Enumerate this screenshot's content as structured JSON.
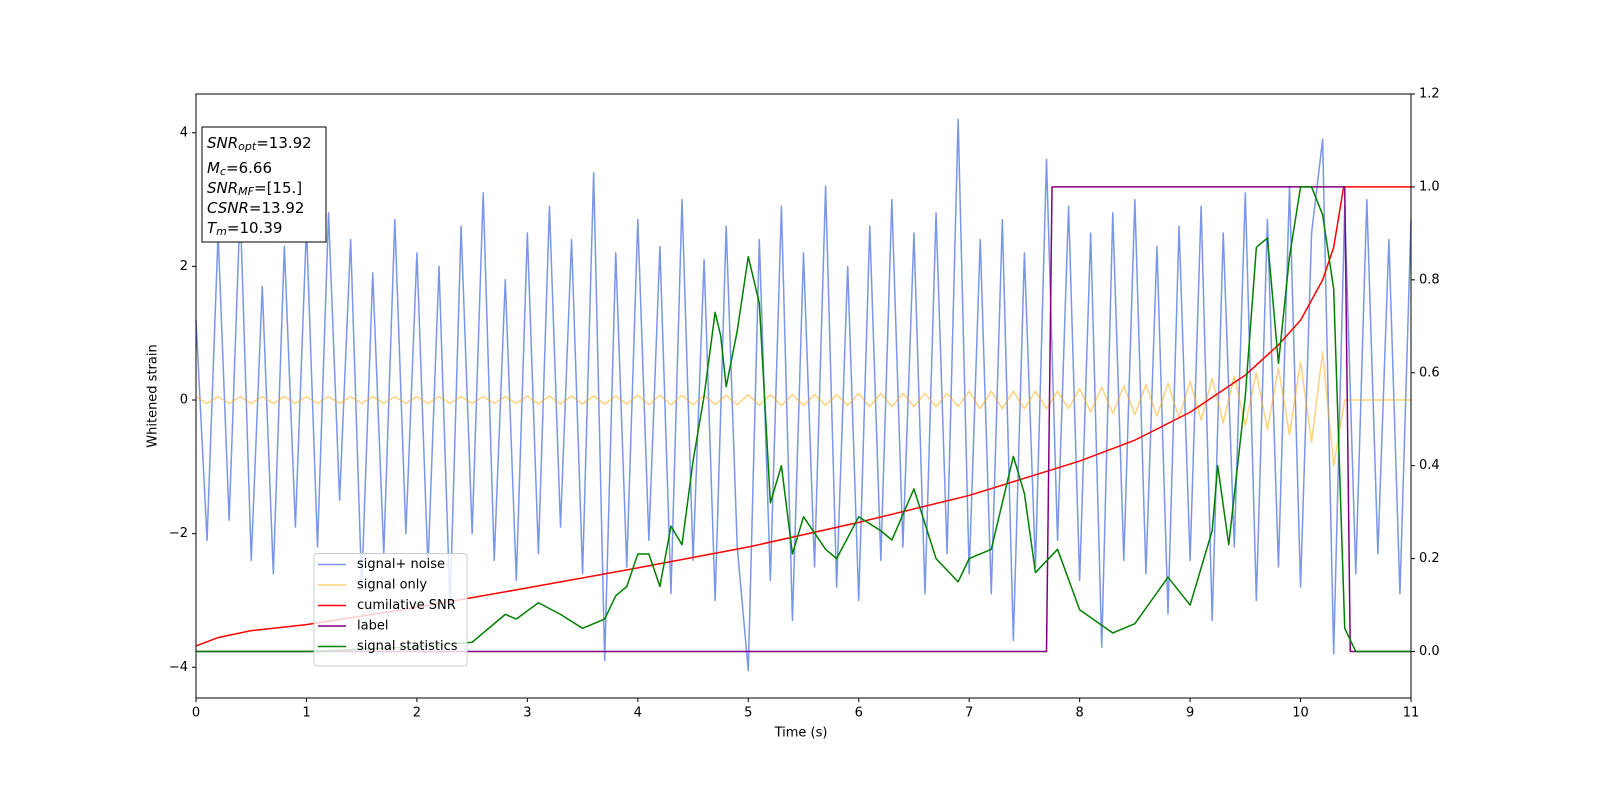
{
  "chart_data": {
    "type": "line",
    "xlabel": "Time (s)",
    "ylabel": "Whitened strain",
    "xlim": [
      0,
      11
    ],
    "ylim": [
      -4.46,
      4.58
    ],
    "y2lim": [
      -0.1,
      1.2
    ],
    "xticks": [
      0,
      1,
      2,
      3,
      4,
      5,
      6,
      7,
      8,
      9,
      10,
      11
    ],
    "yticks": [
      {
        "value": -4,
        "label": "−4"
      },
      {
        "value": -2,
        "label": "−2"
      },
      0,
      2,
      4
    ],
    "y2ticks": [
      {
        "value": 0,
        "label": "0.0"
      },
      0.2,
      0.4,
      0.6,
      0.8,
      {
        "value": 1,
        "label": "1.0"
      },
      1.2
    ],
    "legend": "lower left",
    "x": [
      0,
      0.1,
      0.2,
      0.3,
      0.4,
      0.5,
      0.6,
      0.7,
      0.8,
      0.9,
      1,
      1.1,
      1.2,
      1.3,
      1.4,
      1.5,
      1.6,
      1.7,
      1.8,
      1.9,
      2,
      2.1,
      2.2,
      2.3,
      2.4,
      2.5,
      2.6,
      2.7,
      2.8,
      2.9,
      3,
      3.1,
      3.2,
      3.3,
      3.4,
      3.5,
      3.6,
      3.7,
      3.8,
      3.9,
      4,
      4.1,
      4.2,
      4.3,
      4.4,
      4.5,
      4.6,
      4.7,
      4.8,
      4.9,
      5,
      5.1,
      5.2,
      5.3,
      5.4,
      5.5,
      5.6,
      5.7,
      5.8,
      5.9,
      6,
      6.1,
      6.2,
      6.3,
      6.4,
      6.5,
      6.6,
      6.7,
      6.8,
      6.9,
      7,
      7.1,
      7.2,
      7.3,
      7.4,
      7.5,
      7.6,
      7.7,
      7.8,
      7.9,
      8,
      8.1,
      8.2,
      8.3,
      8.4,
      8.5,
      8.6,
      8.7,
      8.8,
      8.9,
      9,
      9.1,
      9.2,
      9.3,
      9.4,
      9.5,
      9.6,
      9.7,
      9.8,
      9.9,
      10,
      10.1,
      10.2,
      10.3,
      10.4,
      10.5,
      10.6,
      10.7,
      10.8,
      10.9,
      11
    ],
    "series": [
      {
        "name": "signal+ noise",
        "color": "#6b8be6",
        "alpha": 0.9,
        "values": [
          1.2,
          -2.1,
          2.5,
          -1.8,
          2.9,
          -2.4,
          1.7,
          -2.6,
          2.3,
          -1.9,
          2.6,
          -2.2,
          2.8,
          -1.5,
          2.4,
          -2.8,
          1.9,
          -2.3,
          2.7,
          -2.0,
          2.2,
          -2.5,
          2.0,
          -3.1,
          2.6,
          -2.0,
          3.1,
          -2.4,
          1.8,
          -2.7,
          2.5,
          -2.3,
          2.9,
          -1.9,
          2.4,
          -2.6,
          3.4,
          -3.9,
          2.2,
          -2.5,
          2.7,
          -2.1,
          2.3,
          -2.9,
          3.0,
          -2.4,
          2.1,
          -3.0,
          2.6,
          -2.2,
          -4.05,
          2.4,
          -2.7,
          2.9,
          -3.3,
          2.2,
          -2.5,
          3.2,
          -2.8,
          2.0,
          -3.0,
          2.6,
          -2.4,
          3.0,
          -2.2,
          2.5,
          -2.9,
          2.8,
          -2.3,
          4.2,
          -2.6,
          2.4,
          -2.9,
          2.7,
          -3.6,
          2.2,
          -2.5,
          3.6,
          -2.1,
          2.9,
          -2.7,
          2.5,
          -3.7,
          2.8,
          -2.4,
          3.0,
          -2.6,
          2.3,
          -3.2,
          2.6,
          -2.4,
          2.9,
          -3.3,
          2.5,
          -2.2,
          3.1,
          -3.0,
          2.7,
          -2.5,
          3.2,
          -2.8,
          2.5,
          3.9,
          -3.8,
          2.9,
          -2.6,
          3.0,
          -2.3,
          2.4,
          -2.9,
          2.7
        ]
      },
      {
        "name": "signal only",
        "color": "#ffa500",
        "alpha": 0.5,
        "values": [
          0.05,
          -0.05,
          0.05,
          -0.05,
          0.05,
          -0.05,
          0.05,
          -0.05,
          0.05,
          -0.05,
          0.05,
          -0.05,
          0.05,
          -0.05,
          0.05,
          -0.05,
          0.05,
          -0.05,
          0.05,
          -0.05,
          0.05,
          -0.05,
          0.05,
          -0.05,
          0.05,
          -0.05,
          0.05,
          -0.05,
          0.05,
          -0.05,
          0.06,
          -0.06,
          0.06,
          -0.06,
          0.06,
          -0.06,
          0.06,
          -0.06,
          0.06,
          -0.06,
          0.07,
          -0.07,
          0.07,
          -0.07,
          0.07,
          -0.07,
          0.07,
          -0.07,
          0.07,
          -0.07,
          0.08,
          -0.08,
          0.08,
          -0.08,
          0.08,
          -0.08,
          0.08,
          -0.08,
          0.08,
          -0.08,
          0.1,
          -0.1,
          0.1,
          -0.1,
          0.1,
          -0.1,
          0.1,
          -0.1,
          0.1,
          -0.1,
          0.13,
          -0.13,
          0.13,
          -0.13,
          0.13,
          -0.13,
          0.13,
          -0.13,
          0.13,
          -0.13,
          0.17,
          -0.18,
          0.19,
          -0.2,
          0.21,
          -0.22,
          0.23,
          -0.24,
          0.25,
          -0.27,
          0.28,
          -0.3,
          0.32,
          -0.34,
          0.36,
          -0.38,
          0.41,
          -0.44,
          0.48,
          -0.52,
          0.57,
          -0.63,
          0.72,
          -0.98,
          0,
          0,
          0,
          0,
          0,
          0,
          0
        ]
      },
      {
        "name": "cumilative SNR",
        "color": "#ff0000",
        "axis": "y2",
        "x": [
          0,
          0.2,
          0.5,
          1,
          2,
          3,
          4,
          5,
          6,
          7,
          8,
          8.5,
          9,
          9.5,
          9.8,
          10,
          10.2,
          10.3,
          10.39,
          11
        ],
        "values": [
          0.012,
          0.03,
          0.045,
          0.058,
          0.095,
          0.137,
          0.18,
          0.225,
          0.278,
          0.336,
          0.41,
          0.455,
          0.515,
          0.595,
          0.66,
          0.713,
          0.8,
          0.87,
          1.0,
          1.0
        ]
      },
      {
        "name": "label",
        "color": "#800080",
        "axis": "y2",
        "x": [
          0,
          7.7,
          7.75,
          10.4,
          10.45,
          11
        ],
        "values": [
          0,
          0,
          1,
          1,
          0,
          0
        ]
      },
      {
        "name": "signal statistics",
        "color": "#008000",
        "axis": "y2",
        "x": [
          0,
          1,
          2,
          2.5,
          2.8,
          2.9,
          3.1,
          3.3,
          3.5,
          3.7,
          3.8,
          3.9,
          4,
          4.1,
          4.2,
          4.3,
          4.4,
          4.5,
          4.6,
          4.7,
          4.75,
          4.8,
          4.9,
          5,
          5.1,
          5.2,
          5.3,
          5.4,
          5.5,
          5.7,
          5.8,
          6,
          6.2,
          6.3,
          6.5,
          6.7,
          6.9,
          7,
          7.2,
          7.4,
          7.5,
          7.6,
          7.8,
          8,
          8.3,
          8.5,
          8.8,
          9,
          9.2,
          9.25,
          9.35,
          9.5,
          9.6,
          9.7,
          9.8,
          9.9,
          10,
          10.1,
          10.2,
          10.3,
          10.4,
          10.5,
          11
        ],
        "values": [
          0,
          0,
          0.01,
          0.02,
          0.08,
          0.07,
          0.105,
          0.08,
          0.05,
          0.07,
          0.12,
          0.14,
          0.21,
          0.21,
          0.14,
          0.27,
          0.23,
          0.41,
          0.55,
          0.73,
          0.68,
          0.57,
          0.69,
          0.85,
          0.75,
          0.32,
          0.4,
          0.21,
          0.29,
          0.22,
          0.2,
          0.29,
          0.26,
          0.24,
          0.35,
          0.2,
          0.15,
          0.2,
          0.22,
          0.42,
          0.34,
          0.17,
          0.22,
          0.09,
          0.04,
          0.06,
          0.16,
          0.1,
          0.26,
          0.4,
          0.23,
          0.55,
          0.87,
          0.89,
          0.62,
          0.85,
          1.0,
          1.0,
          0.94,
          0.78,
          0.05,
          0,
          0
        ]
      }
    ],
    "annotation": [
      {
        "name": "SNR",
        "sub": "opt",
        "text": "=13.92"
      },
      {
        "name": "M",
        "sub": "c",
        "text": "=6.66"
      },
      {
        "name": "SNR",
        "sub": "MF",
        "text": "=[15.]"
      },
      {
        "name": "CSNR",
        "text": "=13.92"
      },
      {
        "name": "T",
        "sub": "m",
        "text": "=10.39"
      }
    ]
  }
}
